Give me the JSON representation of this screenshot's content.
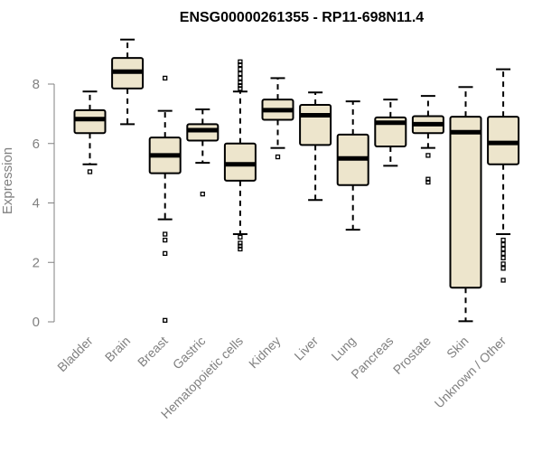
{
  "chart_data": {
    "type": "boxplot",
    "title": "ENSG00000261355 - RP11-698N11.4",
    "ylabel": "Expression",
    "xlabel": "",
    "ylim": [
      0,
      9.6
    ],
    "yticks": [
      0,
      2,
      4,
      6,
      8
    ],
    "grid": false,
    "box_fill": "#ede5cc",
    "axis_color": "#808080",
    "categories": [
      "Bladder",
      "Brain",
      "Breast",
      "Gastric",
      "Hematopoietic cells",
      "Kidney",
      "Liver",
      "Lung",
      "Pancreas",
      "Prostate",
      "Skin",
      "Unknown / Other"
    ],
    "boxes": [
      {
        "min": 5.3,
        "q1": 6.35,
        "median": 6.82,
        "q3": 7.12,
        "max": 7.75,
        "outliers": [
          5.05
        ]
      },
      {
        "min": 6.65,
        "q1": 7.85,
        "median": 8.42,
        "q3": 8.88,
        "max": 9.5,
        "outliers": []
      },
      {
        "min": 3.45,
        "q1": 5.0,
        "median": 5.6,
        "q3": 6.2,
        "max": 7.1,
        "outliers": [
          8.2,
          2.95,
          2.75,
          2.3,
          0.05
        ]
      },
      {
        "min": 5.35,
        "q1": 6.1,
        "median": 6.45,
        "q3": 6.65,
        "max": 7.15,
        "outliers": [
          4.3
        ]
      },
      {
        "min": 2.95,
        "q1": 4.75,
        "median": 5.3,
        "q3": 6.0,
        "max": 7.75,
        "outliers": [
          7.85,
          7.95,
          8.05,
          8.2,
          8.35,
          8.5,
          8.65,
          8.75,
          2.85,
          2.65,
          2.55,
          2.45
        ]
      },
      {
        "min": 5.85,
        "q1": 6.8,
        "median": 7.12,
        "q3": 7.48,
        "max": 8.2,
        "outliers": [
          5.55
        ]
      },
      {
        "min": 4.1,
        "q1": 5.95,
        "median": 6.95,
        "q3": 7.3,
        "max": 7.72,
        "outliers": []
      },
      {
        "min": 3.1,
        "q1": 4.6,
        "median": 5.5,
        "q3": 6.3,
        "max": 7.42,
        "outliers": []
      },
      {
        "min": 5.25,
        "q1": 5.9,
        "median": 6.7,
        "q3": 6.88,
        "max": 7.48,
        "outliers": []
      },
      {
        "min": 5.85,
        "q1": 6.35,
        "median": 6.65,
        "q3": 6.92,
        "max": 7.6,
        "outliers": [
          5.6,
          4.8,
          4.7
        ]
      },
      {
        "min": 0.02,
        "q1": 1.15,
        "median": 6.38,
        "q3": 6.9,
        "max": 7.9,
        "outliers": []
      },
      {
        "min": 2.95,
        "q1": 5.3,
        "median": 6.02,
        "q3": 6.9,
        "max": 8.5,
        "outliers": [
          2.75,
          2.6,
          2.45,
          2.3,
          2.15,
          1.95,
          1.8,
          1.4
        ]
      }
    ]
  }
}
